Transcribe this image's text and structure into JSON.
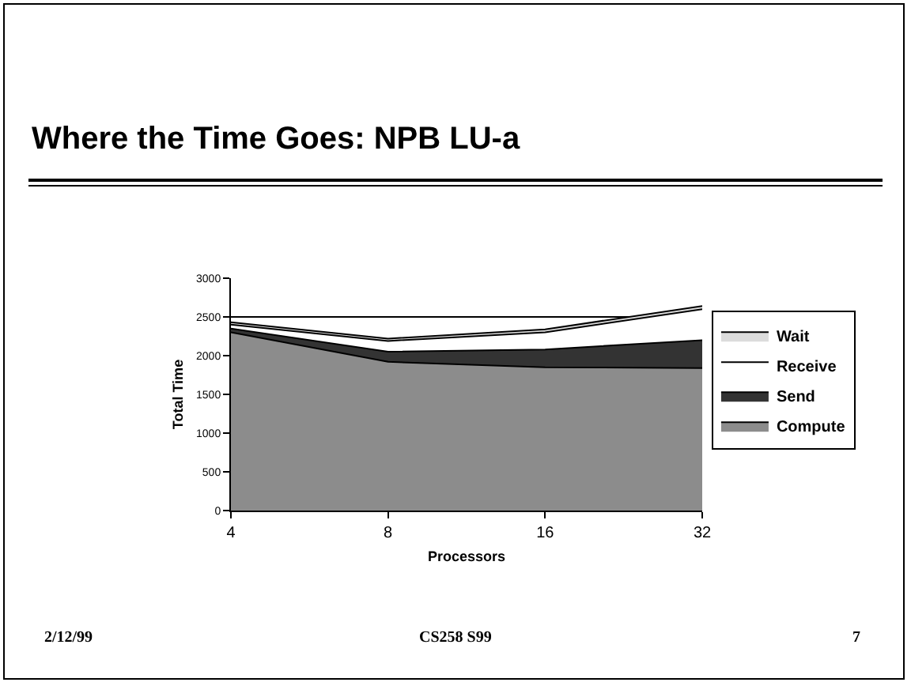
{
  "chart_data": {
    "type": "area",
    "title": "Where the Time Goes: NPB LU-a",
    "xlabel": "Processors",
    "ylabel": "Total Time",
    "categories": [
      "4",
      "8",
      "16",
      "32"
    ],
    "stacked": true,
    "series": [
      {
        "name": "Compute",
        "color": "#8c8c8c",
        "values": [
          2300,
          1920,
          1850,
          1840
        ]
      },
      {
        "name": "Send",
        "color": "#333333",
        "values": [
          50,
          130,
          230,
          360
        ]
      },
      {
        "name": "Receive",
        "color": "#ffffff",
        "values": [
          50,
          140,
          220,
          400
        ]
      },
      {
        "name": "Wait",
        "color": "#dcdcdc",
        "values": [
          30,
          30,
          40,
          40
        ]
      }
    ],
    "ylim": [
      0,
      3000
    ],
    "yticks": [
      0,
      500,
      1000,
      1500,
      2000,
      2500,
      3000
    ],
    "grid": "y",
    "legend": "right",
    "annotations": [
      "2/12/99",
      "CS258 S99",
      "7"
    ]
  }
}
